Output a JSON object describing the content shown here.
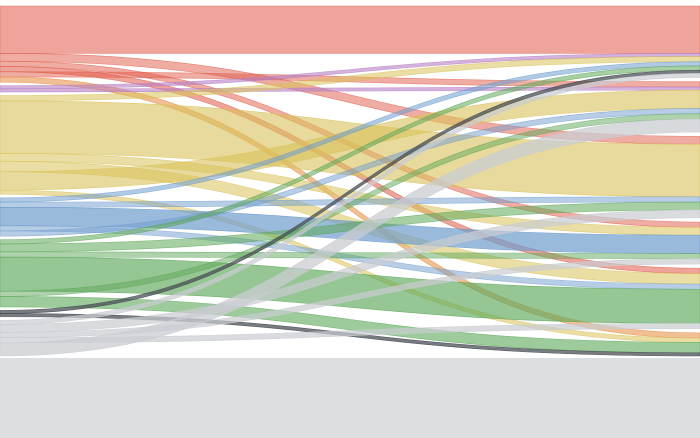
{
  "chart_data": {
    "type": "parallel_categories",
    "title": "",
    "background": "#dcdfe2",
    "plot_background": "#ffffff",
    "dimensions": [
      "left",
      "right"
    ],
    "category_colors": {
      "red": "#e05a47",
      "yellow": "#d9c25a",
      "blue": "#6f9ccd",
      "green": "#5ea85a",
      "gray": "#c9ccd1",
      "dark": "#4a5056",
      "purple": "#b77fc4",
      "orange": "#e58a3c"
    },
    "flows": [
      {
        "from": "red",
        "to": "red",
        "value": 9,
        "color": "red",
        "opacity": 0.55
      },
      {
        "from": "red",
        "to": "yellow",
        "value": 1.5,
        "color": "red",
        "opacity": 0.5
      },
      {
        "from": "red",
        "to": "blue",
        "value": 1,
        "color": "red",
        "opacity": 0.5
      },
      {
        "from": "red",
        "to": "green",
        "value": 1,
        "color": "red",
        "opacity": 0.55
      },
      {
        "from": "red",
        "to": "gray",
        "value": 1,
        "color": "red",
        "opacity": 0.5
      },
      {
        "from": "red",
        "to": "dark",
        "value": 1,
        "color": "orange",
        "opacity": 0.55
      },
      {
        "from": "purple",
        "to": "red",
        "value": 0.6,
        "color": "purple",
        "opacity": 0.6
      },
      {
        "from": "purple",
        "to": "gray",
        "value": 0.6,
        "color": "purple",
        "opacity": 0.6
      },
      {
        "from": "yellow",
        "to": "red",
        "value": 1,
        "color": "yellow",
        "opacity": 0.55
      },
      {
        "from": "yellow",
        "to": "yellow",
        "value": 10,
        "color": "yellow",
        "opacity": 0.6
      },
      {
        "from": "yellow",
        "to": "blue",
        "value": 1.5,
        "color": "yellow",
        "opacity": 0.55
      },
      {
        "from": "yellow",
        "to": "green",
        "value": 2,
        "color": "yellow",
        "opacity": 0.55
      },
      {
        "from": "yellow",
        "to": "gray",
        "value": 3.5,
        "color": "yellow",
        "opacity": 0.6
      },
      {
        "from": "yellow",
        "to": "dark",
        "value": 0.8,
        "color": "yellow",
        "opacity": 0.55
      },
      {
        "from": "blue",
        "to": "red",
        "value": 0.8,
        "color": "blue",
        "opacity": 0.55
      },
      {
        "from": "blue",
        "to": "yellow",
        "value": 1,
        "color": "blue",
        "opacity": 0.5
      },
      {
        "from": "blue",
        "to": "blue",
        "value": 3.5,
        "color": "blue",
        "opacity": 0.7
      },
      {
        "from": "blue",
        "to": "green",
        "value": 1,
        "color": "blue",
        "opacity": 0.5
      },
      {
        "from": "blue",
        "to": "gray",
        "value": 1,
        "color": "blue",
        "opacity": 0.5
      },
      {
        "from": "green",
        "to": "red",
        "value": 0.8,
        "color": "green",
        "opacity": 0.55
      },
      {
        "from": "green",
        "to": "yellow",
        "value": 1.5,
        "color": "green",
        "opacity": 0.55
      },
      {
        "from": "green",
        "to": "blue",
        "value": 1,
        "color": "green",
        "opacity": 0.5
      },
      {
        "from": "green",
        "to": "green",
        "value": 6.5,
        "color": "green",
        "opacity": 0.65
      },
      {
        "from": "green",
        "to": "gray",
        "value": 1,
        "color": "green",
        "opacity": 0.5
      },
      {
        "from": "green",
        "to": "dark",
        "value": 2,
        "color": "green",
        "opacity": 0.6
      },
      {
        "from": "dark",
        "to": "red",
        "value": 0.6,
        "color": "dark",
        "opacity": 0.75
      },
      {
        "from": "dark",
        "to": "dark",
        "value": 0.6,
        "color": "dark",
        "opacity": 0.75
      },
      {
        "from": "gray",
        "to": "red",
        "value": 0.8,
        "color": "gray",
        "opacity": 0.7
      },
      {
        "from": "gray",
        "to": "yellow",
        "value": 1.5,
        "color": "gray",
        "opacity": 0.7
      },
      {
        "from": "gray",
        "to": "blue",
        "value": 1,
        "color": "gray",
        "opacity": 0.7
      },
      {
        "from": "gray",
        "to": "green",
        "value": 1,
        "color": "gray",
        "opacity": 0.7
      },
      {
        "from": "gray",
        "to": "gray",
        "value": 2.5,
        "color": "gray",
        "opacity": 0.75
      }
    ],
    "left_order": [
      "red",
      "purple",
      "yellow",
      "blue",
      "green",
      "dark",
      "gray"
    ],
    "right_order": [
      "red",
      "gray",
      "yellow",
      "blue",
      "green",
      "dark"
    ],
    "gap_fraction": 0.06
  }
}
